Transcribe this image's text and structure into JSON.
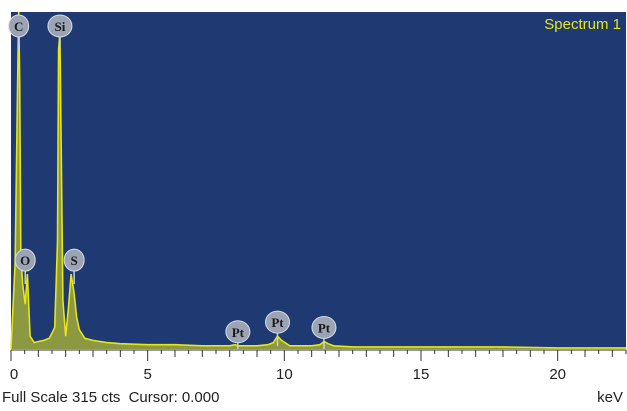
{
  "chart_data": {
    "type": "line",
    "title": "Spectrum 1",
    "xlabel": "keV",
    "xlim": [
      0,
      22.5
    ],
    "ylim": [
      0,
      315
    ],
    "x_ticks": [
      0,
      5,
      10,
      15,
      20
    ],
    "x_tick_labels": [
      "0",
      "5",
      "10",
      "15",
      "20"
    ],
    "colors": {
      "background": "#1f3a73",
      "trace": "#e6e619",
      "peak_label_bg": "#9aa4b4"
    },
    "series": [
      {
        "x": [
          0.0,
          0.15,
          0.25,
          0.28,
          0.32,
          0.36,
          0.42,
          0.48,
          0.52,
          0.6,
          0.7,
          0.85,
          1.0,
          1.2,
          1.4,
          1.6,
          1.7,
          1.74,
          1.79,
          1.84,
          1.9,
          2.0,
          2.1,
          2.2,
          2.31,
          2.4,
          2.5,
          2.7,
          3.0,
          3.5,
          4.0,
          5.0,
          6.0,
          7.0,
          8.0,
          8.2,
          8.3,
          9.0,
          9.4,
          9.6,
          9.75,
          9.9,
          10.2,
          11.0,
          11.3,
          11.45,
          11.6,
          11.8,
          12.5,
          14.0,
          16.0,
          18.0,
          20.0,
          22.5
        ],
        "y": [
          0,
          80,
          260,
          340,
          250,
          90,
          62,
          50,
          42,
          70,
          12,
          6,
          7,
          8,
          10,
          20,
          100,
          280,
          295,
          180,
          45,
          12,
          38,
          70,
          52,
          30,
          18,
          10,
          8,
          6,
          5,
          4,
          4,
          3,
          3,
          4,
          3,
          3,
          4,
          6,
          12,
          8,
          3,
          3,
          4,
          7,
          5,
          3,
          2,
          2,
          2,
          2,
          1,
          1
        ]
      }
    ],
    "peaks": [
      {
        "label": "C",
        "x": 0.28,
        "y": 340
      },
      {
        "label": "O",
        "x": 0.52,
        "y": 70
      },
      {
        "label": "Si",
        "x": 1.79,
        "y": 295
      },
      {
        "label": "S",
        "x": 2.31,
        "y": 70
      },
      {
        "label": "Pt",
        "x": 8.3,
        "y": 3
      },
      {
        "label": "Pt",
        "x": 9.75,
        "y": 12
      },
      {
        "label": "Pt",
        "x": 11.45,
        "y": 7
      }
    ]
  },
  "status_bar": {
    "full_scale": "Full Scale 315 cts",
    "cursor": "Cursor: 0.000",
    "unit": "keV"
  }
}
